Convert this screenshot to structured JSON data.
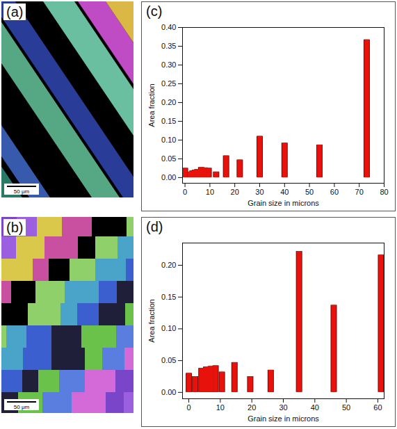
{
  "images": [
    {
      "panel": "(a)",
      "scale_bar": "50 μm"
    },
    {
      "panel": "(b)",
      "scale_bar": "50 μm"
    }
  ],
  "chart_data": [
    {
      "panel": "(c)",
      "type": "bar",
      "x_label": "Grain size in microns",
      "y_label": "Area fraction",
      "x": [
        0,
        2,
        3,
        4,
        5,
        6.5,
        8,
        9.5,
        12.5,
        16.5,
        22,
        30,
        40,
        54,
        73
      ],
      "values": [
        0.025,
        0.015,
        0.018,
        0.02,
        0.022,
        0.027,
        0.026,
        0.025,
        0.015,
        0.058,
        0.047,
        0.11,
        0.092,
        0.087,
        0.367
      ],
      "color": "#e8120c",
      "xlim": [
        -1,
        80
      ],
      "xticks": [
        0,
        10,
        20,
        30,
        40,
        50,
        60,
        70,
        80
      ],
      "ylim": [
        -0.015,
        0.4
      ],
      "yticks": [
        {
          "value": 0,
          "label": "0.00"
        },
        {
          "value": 0.05,
          "label": "0.05"
        },
        {
          "value": 0.1,
          "label": "0.10"
        },
        {
          "value": 0.15,
          "label": "0.15"
        },
        {
          "value": 0.2,
          "label": "0.20"
        },
        {
          "value": 0.25,
          "label": "0.25"
        },
        {
          "value": 0.3,
          "label": "0.30"
        },
        {
          "value": 0.35,
          "label": "0.35"
        },
        {
          "value": 0.4,
          "label": "0.40"
        }
      ]
    },
    {
      "panel": "(d)",
      "type": "bar",
      "x_label": "Grain size in microns",
      "y_label": "Area fraction",
      "x": [
        0,
        2,
        4,
        5.5,
        7,
        8.5,
        10.5,
        14.5,
        19.5,
        26,
        35,
        46,
        61
      ],
      "values": [
        0.03,
        0.025,
        0.038,
        0.04,
        0.041,
        0.042,
        0.032,
        0.047,
        0.025,
        0.035,
        0.222,
        0.137,
        0.216
      ],
      "color": "#e8120c",
      "xlim": [
        -2,
        62
      ],
      "xticks": [
        0,
        10,
        20,
        30,
        40,
        50,
        60
      ],
      "ylim": [
        -0.01,
        0.235
      ],
      "yticks": [
        {
          "value": 0,
          "label": "0.00"
        },
        {
          "value": 0.05,
          "label": "0.05"
        },
        {
          "value": 0.1,
          "label": "0.10"
        },
        {
          "value": 0.15,
          "label": "0.15"
        },
        {
          "value": 0.2,
          "label": "0.20"
        }
      ]
    }
  ]
}
